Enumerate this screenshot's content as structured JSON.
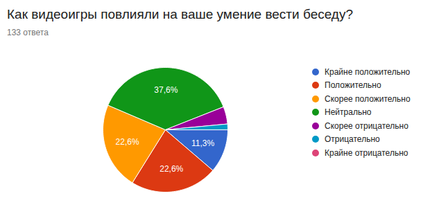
{
  "chart_data": {
    "type": "pie",
    "title": "Как видеоигры повлияли на ваше умение вести беседу?",
    "subtitle": "133 ответа",
    "categories": [
      "Крайне положительно",
      "Положительно",
      "Скорее положительно",
      "Нейтрально",
      "Скорее отрицательно",
      "Отрицательно",
      "Крайне отрицательно"
    ],
    "values": [
      11.3,
      22.6,
      22.6,
      37.6,
      4.5,
      1.5,
      0
    ],
    "value_labels": [
      "11,3%",
      "22,6%",
      "22,6%",
      "37,6%",
      null,
      null,
      null
    ],
    "colors": [
      "#3366cc",
      "#dc3912",
      "#ff9900",
      "#109618",
      "#990099",
      "#0099c6",
      "#dd4477"
    ],
    "data_labels": true,
    "legend": "right"
  }
}
